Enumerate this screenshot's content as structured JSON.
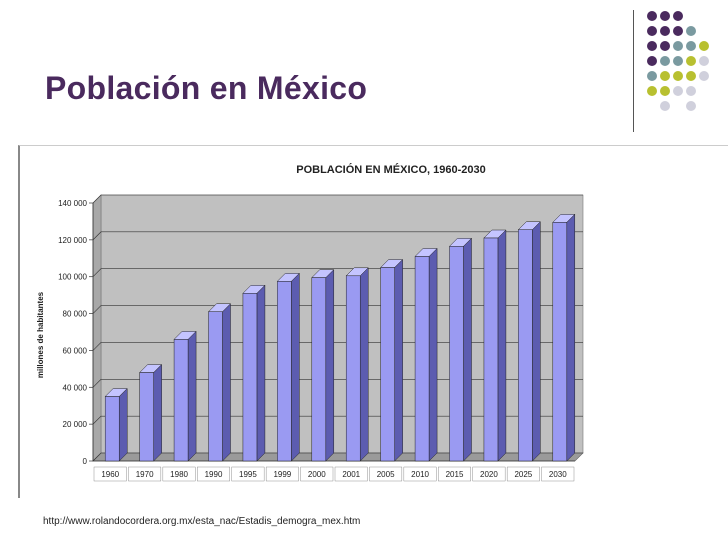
{
  "slide": {
    "title": "Población en México",
    "source": "http://www.rolandocordera.org.mx/esta_nac/Estadis_demogra_mex.htm"
  },
  "decoration": {
    "dot_colors": [
      "#4a2a5e",
      "#7a9aa0",
      "#b8c030",
      "#d0d0dc"
    ],
    "dot_icon": "circle-dot"
  },
  "chart_data": {
    "type": "bar",
    "title": "POBLACIÓN EN MÉXICO, 1960-2030",
    "xlabel": "",
    "ylabel": "millones de habitantes",
    "categories": [
      "1960",
      "1970",
      "1980",
      "1990",
      "1995",
      "1999",
      "2000",
      "2001",
      "2005",
      "2010",
      "2015",
      "2020",
      "2025",
      "2030"
    ],
    "values": [
      35000,
      48000,
      66000,
      81000,
      91000,
      97500,
      99500,
      100500,
      105000,
      111000,
      116500,
      121000,
      125500,
      129500
    ],
    "ylim": [
      0,
      140000
    ],
    "yticks": [
      "0",
      "20 000",
      "40 000",
      "60 000",
      "80 000",
      "100 000",
      "120 000",
      "140 000"
    ],
    "grid": true,
    "style": "3d",
    "colors": {
      "bar_front": "#9a9af2",
      "bar_side": "#5c5cb0",
      "bar_top": "#c4c4ff",
      "wall": "#c0c0c0",
      "floor": "#9a9a9a"
    }
  }
}
